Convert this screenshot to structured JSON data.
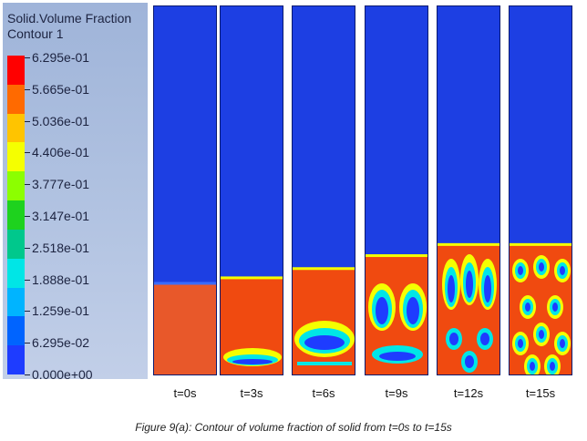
{
  "legend": {
    "title_line1": "Solid.Volume Fraction",
    "title_line2": "Contour 1",
    "labels": [
      "6.295e-01",
      "5.665e-01",
      "5.036e-01",
      "4.406e-01",
      "3.777e-01",
      "3.147e-01",
      "2.518e-01",
      "1.888e-01",
      "1.259e-01",
      "6.295e-02",
      "0.000e+00"
    ],
    "colors": [
      "#ff0000",
      "#ff6a00",
      "#ffc400",
      "#f5ff00",
      "#8cff00",
      "#1ed21e",
      "#00c88c",
      "#00e6e6",
      "#00b4ff",
      "#0064ff",
      "#1e3cff"
    ]
  },
  "panels": [
    {
      "label": "t=0s",
      "bed_top_fraction": 0.75
    },
    {
      "label": "t=3s",
      "bed_top_fraction": 0.735
    },
    {
      "label": "t=6s",
      "bed_top_fraction": 0.71
    },
    {
      "label": "t=9s",
      "bed_top_fraction": 0.675
    },
    {
      "label": "t=12s",
      "bed_top_fraction": 0.645
    },
    {
      "label": "t=15s",
      "bed_top_fraction": 0.645
    }
  ],
  "colors": {
    "empty": "#1d3fe3",
    "bed": "#f04a10",
    "bed_light": "#ff6a1a",
    "bubble_edge_cyan": "#00e6e6",
    "bubble_edge_yellow": "#f5ff00",
    "bubble_core": "#1e3cff"
  },
  "caption": "Figure 9(a): Contour of volume fraction of solid from t=0s to t=15s"
}
